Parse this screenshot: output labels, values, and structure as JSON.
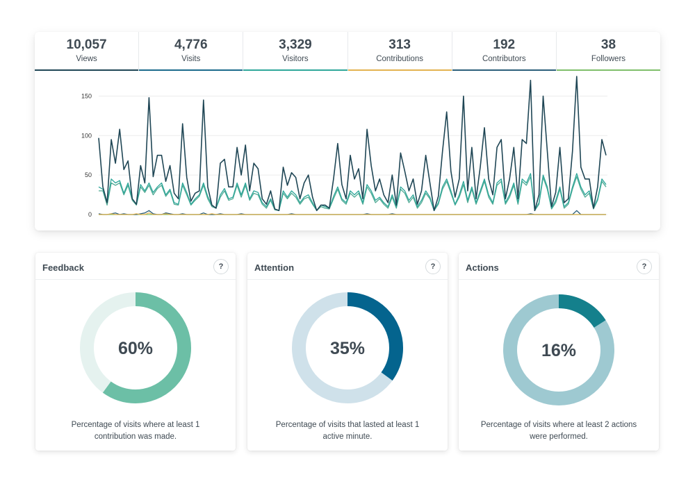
{
  "stats": [
    {
      "value": "10,057",
      "label": "Views",
      "color": "#1f4655"
    },
    {
      "value": "4,776",
      "label": "Visits",
      "color": "#1b6a8c"
    },
    {
      "value": "3,329",
      "label": "Visitors",
      "color": "#2ea79a"
    },
    {
      "value": "313",
      "label": "Contributions",
      "color": "#e3b350"
    },
    {
      "value": "192",
      "label": "Contributors",
      "color": "#2b5f7a"
    },
    {
      "value": "38",
      "label": "Followers",
      "color": "#7fbf6a"
    }
  ],
  "chart_data": {
    "type": "line",
    "ylim": [
      0,
      175
    ],
    "yticks": [
      "0",
      "50",
      "100",
      "150"
    ],
    "series": [
      {
        "color": "#1f4655",
        "values": [
          97,
          35,
          15,
          95,
          65,
          108,
          57,
          68,
          20,
          13,
          62,
          40,
          148,
          48,
          75,
          75,
          42,
          62,
          27,
          20,
          115,
          47,
          17,
          27,
          30,
          145,
          35,
          12,
          8,
          65,
          70,
          35,
          35,
          85,
          50,
          88,
          30,
          65,
          58,
          20,
          13,
          30,
          7,
          5,
          60,
          37,
          53,
          47,
          20,
          40,
          50,
          22,
          5,
          12,
          12,
          8,
          45,
          90,
          38,
          20,
          75,
          45,
          58,
          20,
          108,
          62,
          30,
          45,
          25,
          15,
          50,
          12,
          78,
          55,
          30,
          45,
          13,
          30,
          75,
          40,
          5,
          23,
          80,
          130,
          55,
          22,
          45,
          150,
          30,
          85,
          20,
          60,
          110,
          45,
          25,
          85,
          95,
          20,
          45,
          85,
          20,
          95,
          90,
          170,
          5,
          25,
          150,
          80,
          10,
          28,
          85,
          15,
          20,
          80,
          175,
          60,
          45,
          45,
          8,
          35,
          95,
          75
        ]
      },
      {
        "color": "#2ea79a",
        "values": [
          35,
          32,
          15,
          45,
          40,
          43,
          27,
          40,
          20,
          13,
          38,
          30,
          40,
          28,
          35,
          40,
          25,
          32,
          15,
          13,
          40,
          28,
          13,
          20,
          25,
          40,
          23,
          12,
          8,
          25,
          33,
          20,
          22,
          40,
          25,
          40,
          20,
          30,
          28,
          15,
          10,
          20,
          7,
          5,
          30,
          22,
          30,
          25,
          15,
          22,
          25,
          15,
          5,
          12,
          10,
          8,
          23,
          35,
          20,
          15,
          30,
          25,
          30,
          15,
          38,
          30,
          18,
          22,
          15,
          10,
          25,
          10,
          35,
          30,
          18,
          25,
          10,
          18,
          30,
          22,
          5,
          15,
          35,
          45,
          30,
          13,
          25,
          42,
          18,
          35,
          15,
          30,
          45,
          25,
          15,
          40,
          45,
          15,
          25,
          40,
          15,
          45,
          40,
          52,
          5,
          15,
          50,
          35,
          8,
          18,
          35,
          10,
          15,
          35,
          52,
          35,
          25,
          30,
          8,
          20,
          45,
          38
        ]
      },
      {
        "color": "#4fa993",
        "values": [
          30,
          30,
          12,
          40,
          37,
          40,
          25,
          37,
          18,
          12,
          35,
          28,
          37,
          25,
          33,
          37,
          23,
          30,
          13,
          12,
          37,
          25,
          12,
          18,
          23,
          37,
          20,
          10,
          8,
          22,
          30,
          18,
          20,
          37,
          22,
          37,
          18,
          27,
          25,
          13,
          8,
          18,
          6,
          5,
          27,
          20,
          27,
          22,
          13,
          20,
          22,
          13,
          5,
          10,
          8,
          7,
          20,
          32,
          18,
          13,
          27,
          22,
          27,
          13,
          35,
          27,
          15,
          20,
          13,
          8,
          22,
          8,
          32,
          27,
          15,
          22,
          8,
          15,
          27,
          20,
          5,
          13,
          32,
          42,
          27,
          12,
          22,
          38,
          15,
          32,
          13,
          27,
          42,
          22,
          13,
          37,
          42,
          13,
          22,
          37,
          13,
          42,
          37,
          48,
          5,
          13,
          47,
          32,
          7,
          15,
          32,
          8,
          13,
          32,
          48,
          32,
          22,
          27,
          7,
          18,
          42,
          35
        ]
      },
      {
        "color": "#e3b350",
        "values": [
          0,
          0,
          0,
          1,
          0,
          0,
          0,
          0,
          0,
          1,
          0,
          0,
          2,
          0,
          0,
          0,
          1,
          0,
          0,
          0,
          0,
          0,
          0,
          0,
          0,
          0,
          0,
          1,
          0,
          0,
          0,
          0,
          0,
          0,
          0,
          0,
          0,
          0,
          0,
          0,
          0,
          0,
          0,
          0,
          0,
          0,
          0,
          0,
          0,
          0,
          0,
          0,
          0,
          0,
          0,
          0,
          0,
          0,
          0,
          0,
          0,
          0,
          0,
          0,
          0,
          0,
          0,
          0,
          0,
          0,
          0,
          0,
          0,
          0,
          0,
          0,
          0,
          0,
          0,
          0,
          0,
          0,
          0,
          0,
          0,
          0,
          0,
          0,
          0,
          0,
          0,
          0,
          0,
          0,
          0,
          0,
          0,
          0,
          0,
          0,
          0,
          0,
          0,
          0,
          0,
          0,
          0,
          0,
          0,
          0,
          0,
          0,
          0,
          0,
          0,
          0,
          0,
          0,
          0,
          0,
          0,
          0
        ]
      },
      {
        "color": "#2b5f7a",
        "values": [
          1,
          0,
          0,
          1,
          2,
          0,
          1,
          0,
          0,
          0,
          1,
          2,
          5,
          1,
          0,
          0,
          2,
          1,
          0,
          0,
          1,
          0,
          0,
          0,
          0,
          2,
          0,
          0,
          0,
          1,
          0,
          0,
          0,
          0,
          1,
          0,
          0,
          0,
          0,
          0,
          0,
          0,
          0,
          0,
          0,
          0,
          1,
          0,
          0,
          0,
          0,
          0,
          0,
          0,
          0,
          0,
          0,
          0,
          0,
          0,
          0,
          0,
          0,
          0,
          1,
          0,
          0,
          0,
          0,
          0,
          1,
          0,
          0,
          0,
          0,
          0,
          0,
          0,
          0,
          0,
          0,
          0,
          0,
          0,
          0,
          0,
          0,
          0,
          0,
          0,
          0,
          0,
          0,
          0,
          0,
          0,
          0,
          0,
          0,
          0,
          0,
          0,
          0,
          1,
          0,
          0,
          0,
          0,
          0,
          0,
          0,
          0,
          0,
          0,
          5,
          0,
          0,
          0,
          0,
          0,
          0,
          0
        ]
      },
      {
        "color": "#7fbf6a",
        "values": [
          0,
          0,
          0,
          0,
          0,
          0,
          0,
          0,
          0,
          0,
          0,
          0,
          0,
          0,
          0,
          0,
          0,
          0,
          0,
          0,
          0,
          0,
          0,
          0,
          0,
          0,
          0,
          0,
          0,
          0,
          0,
          0,
          0,
          0,
          0,
          0,
          0,
          0,
          0,
          0,
          0,
          0,
          0,
          0,
          0,
          0,
          0,
          0,
          0,
          0,
          0,
          0,
          0,
          0,
          0,
          0,
          0,
          0,
          0,
          0,
          0,
          0,
          0,
          0,
          0,
          0,
          0,
          0,
          0,
          0,
          0,
          0,
          0,
          0,
          0,
          0,
          0,
          0,
          0,
          0,
          0,
          0,
          0,
          0,
          0,
          0,
          0,
          0,
          0,
          0,
          0,
          0,
          0,
          0,
          0,
          0,
          0,
          0,
          0,
          0,
          0,
          0,
          0,
          0,
          0,
          0,
          0,
          0,
          0,
          0,
          0,
          0,
          0,
          0,
          0,
          0,
          0,
          0,
          0,
          0,
          0,
          0
        ]
      }
    ]
  },
  "panels": [
    {
      "title": "Feedback",
      "help": "?",
      "percent": 60,
      "value": "60%",
      "description": "Percentage of visits where at least 1 contribution was made.",
      "fg": "#6cbfa6",
      "bg": "#e5f2ef"
    },
    {
      "title": "Attention",
      "help": "?",
      "percent": 35,
      "value": "35%",
      "description": "Percentage of visits that lasted at least 1 active minute.",
      "fg": "#04648e",
      "bg": "#cfe1ea"
    },
    {
      "title": "Actions",
      "help": "?",
      "percent": 16,
      "value": "16%",
      "description": "Percentage of visits where at least 2 actions were performed.",
      "fg": "#14808c",
      "bg": "#9ec9d1"
    }
  ]
}
